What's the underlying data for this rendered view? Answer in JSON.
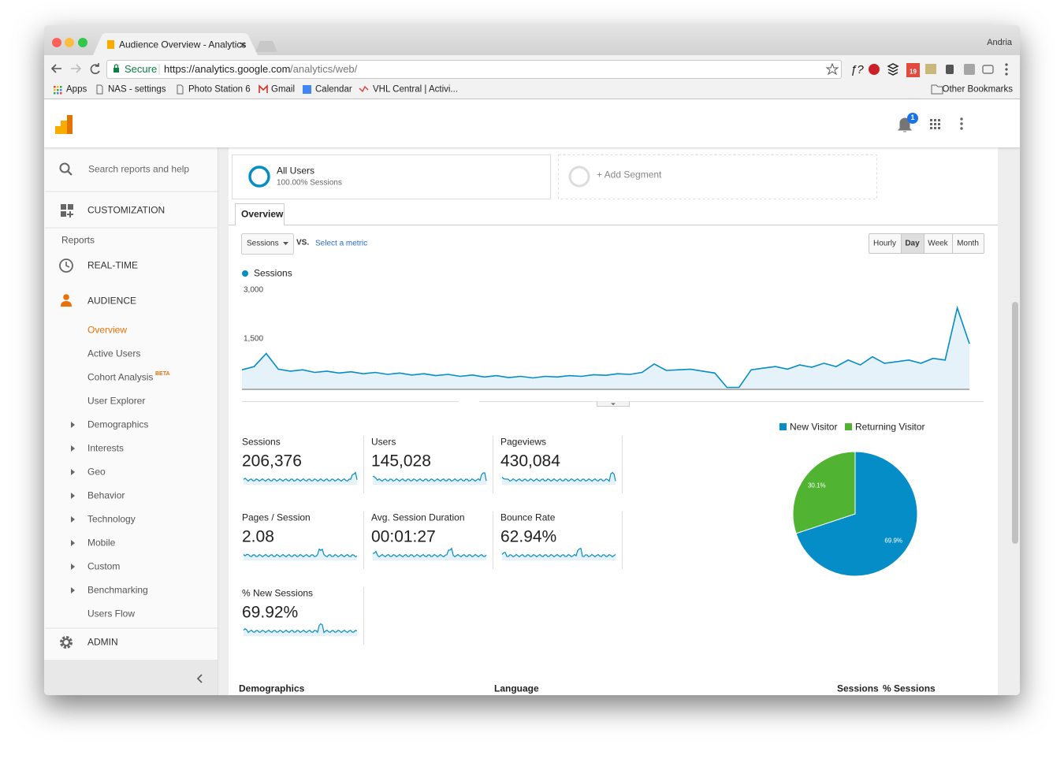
{
  "browser": {
    "tab_title": "Audience Overview - Analytics",
    "profile": "Andria",
    "secure_label": "Secure",
    "url_host": "https://analytics.google.com",
    "url_path": "/analytics/web/",
    "bookmarks": [
      "Apps",
      "NAS - settings",
      "Photo Station 6",
      "Gmail",
      "Calendar",
      "VHL Central | Activi..."
    ],
    "other_bookmarks": "Other Bookmarks",
    "calendar_badge": "19"
  },
  "header": {
    "notification_count": "1"
  },
  "sidebar": {
    "search": "Search reports and help",
    "customization": "CUSTOMIZATION",
    "reports": "Reports",
    "realtime": "REAL-TIME",
    "audience": "AUDIENCE",
    "audience_items": [
      {
        "label": "Overview",
        "active": true
      },
      {
        "label": "Active Users"
      },
      {
        "label": "Cohort Analysis",
        "badge": "BETA"
      },
      {
        "label": "User Explorer"
      },
      {
        "label": "Demographics",
        "expandable": true
      },
      {
        "label": "Interests",
        "expandable": true
      },
      {
        "label": "Geo",
        "expandable": true
      },
      {
        "label": "Behavior",
        "expandable": true
      },
      {
        "label": "Technology",
        "expandable": true
      },
      {
        "label": "Mobile",
        "expandable": true
      },
      {
        "label": "Custom",
        "expandable": true
      },
      {
        "label": "Benchmarking",
        "expandable": true
      },
      {
        "label": "Users Flow"
      }
    ],
    "admin": "ADMIN"
  },
  "segments": {
    "all_users": "All Users",
    "all_users_detail": "100.00% Sessions",
    "add_segment": "+ Add Segment"
  },
  "tab": "Overview",
  "controls": {
    "metric": "Sessions",
    "vs": "VS.",
    "select_metric": "Select a metric",
    "intervals": [
      "Hourly",
      "Day",
      "Week",
      "Month"
    ],
    "selected_interval": 1
  },
  "chart_data": [
    {
      "type": "line",
      "categories": [
        null,
        null,
        null,
        null,
        null,
        null,
        null,
        null,
        null,
        null,
        null,
        null,
        null,
        null,
        null,
        null,
        null,
        null,
        null,
        null,
        null,
        null,
        null,
        null,
        null,
        null,
        null,
        null,
        null,
        null,
        null,
        null,
        null,
        null,
        null,
        null,
        null,
        null,
        null,
        null,
        null,
        null,
        null,
        null,
        null,
        null,
        null,
        null,
        null,
        null,
        null,
        null,
        null,
        null,
        null,
        null,
        null,
        null,
        null,
        null,
        null
      ],
      "series": [
        {
          "name": "Sessions",
          "color": "#058dc7",
          "values": [
            600,
            700,
            1100,
            620,
            560,
            600,
            520,
            560,
            500,
            540,
            480,
            520,
            460,
            500,
            440,
            480,
            420,
            460,
            400,
            440,
            380,
            420,
            360,
            400,
            350,
            400,
            380,
            420,
            400,
            450,
            430,
            480,
            460,
            520,
            780,
            580,
            600,
            620,
            560,
            500,
            60,
            60,
            600,
            650,
            700,
            620,
            750,
            680,
            800,
            700,
            900,
            750,
            1000,
            800,
            850,
            900,
            800,
            950,
            900,
            2500,
            1400
          ]
        }
      ],
      "ylim": [
        0,
        3000
      ],
      "yticks": [
        {
          "value": 1500,
          "label": "1,500"
        },
        {
          "value": 3000,
          "label": "3,000"
        }
      ],
      "grid": false
    },
    {
      "type": "pie",
      "categories": [
        "New Visitor",
        "Returning Visitor"
      ],
      "values": [
        69.9,
        30.1
      ],
      "value_labels": [
        "69.9%",
        "30.1%"
      ],
      "colors": [
        "#058dc7",
        "#50b432"
      ]
    }
  ],
  "metrics": [
    {
      "label": "Sessions",
      "value": "206,376"
    },
    {
      "label": "Users",
      "value": "145,028"
    },
    {
      "label": "Pageviews",
      "value": "430,084"
    },
    {
      "label": "Pages / Session",
      "value": "2.08"
    },
    {
      "label": "Avg. Session Duration",
      "value": "00:01:27"
    },
    {
      "label": "Bounce Rate",
      "value": "62.94%"
    },
    {
      "label": "% New Sessions",
      "value": "69.92%"
    }
  ],
  "table_headers": {
    "demographics": "Demographics",
    "language": "Language",
    "sessions": "Sessions",
    "pct_sessions": "% Sessions"
  }
}
